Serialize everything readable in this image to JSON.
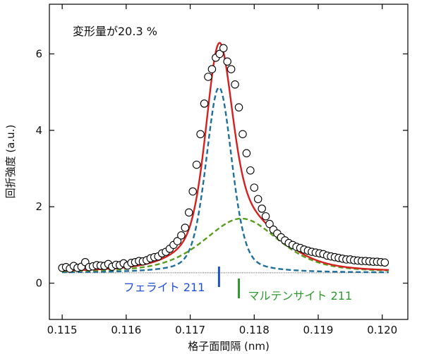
{
  "chart_data": {
    "type": "line",
    "annotation": "変形量が20.3 %",
    "xlabel": "格子面間隔 (nm)",
    "ylabel": "回折強度 (a.u.)",
    "xlim": [
      0.1148,
      0.1204
    ],
    "ylim": [
      -0.95,
      7.3
    ],
    "xticks": [
      "0.115",
      "0.116",
      "0.117",
      "0.118",
      "0.119",
      "0.120"
    ],
    "yticks": [
      "0",
      "2",
      "4",
      "6"
    ],
    "peak_markers": [
      {
        "label": "フェライト 211",
        "x": 0.11745,
        "color": "#1f4fd8"
      },
      {
        "label": "マルテンサイト 211",
        "x": 0.11776,
        "color": "#2e9a2e"
      }
    ],
    "baseline": 0.27,
    "series": [
      {
        "style": "open-circles",
        "color": "#000000",
        "x": [
          0.115,
          0.11506,
          0.11512,
          0.11518,
          0.11524,
          0.1153,
          0.11536,
          0.11542,
          0.11548,
          0.11554,
          0.1156,
          0.11566,
          0.11572,
          0.11578,
          0.11584,
          0.1159,
          0.11596,
          0.11602,
          0.11608,
          0.11614,
          0.1162,
          0.11626,
          0.11632,
          0.11638,
          0.11644,
          0.1165,
          0.11656,
          0.11662,
          0.11668,
          0.11674,
          0.1168,
          0.11686,
          0.11692,
          0.11698,
          0.11704,
          0.1171,
          0.11716,
          0.11722,
          0.11728,
          0.11734,
          0.1174,
          0.11746,
          0.11752,
          0.11758,
          0.11764,
          0.1177,
          0.11776,
          0.11782,
          0.11788,
          0.11794,
          0.118,
          0.11806,
          0.11812,
          0.11818,
          0.11824,
          0.1183,
          0.11836,
          0.11842,
          0.11848,
          0.11854,
          0.1186,
          0.11866,
          0.11872,
          0.11878,
          0.11884,
          0.1189,
          0.11896,
          0.11902,
          0.11908,
          0.11914,
          0.1192,
          0.11926,
          0.11932,
          0.11938,
          0.11944,
          0.1195,
          0.11956,
          0.11962,
          0.11968,
          0.11974,
          0.1198,
          0.11986,
          0.11992,
          0.11998,
          0.12004
        ],
        "y": [
          0.4,
          0.42,
          0.38,
          0.45,
          0.4,
          0.43,
          0.55,
          0.42,
          0.44,
          0.47,
          0.46,
          0.45,
          0.5,
          0.43,
          0.48,
          0.47,
          0.52,
          0.46,
          0.53,
          0.55,
          0.58,
          0.57,
          0.6,
          0.65,
          0.68,
          0.7,
          0.78,
          0.82,
          0.9,
          1.0,
          1.1,
          1.25,
          1.45,
          1.85,
          2.4,
          3.1,
          3.9,
          4.7,
          5.4,
          5.6,
          5.9,
          6.0,
          6.15,
          5.8,
          5.6,
          5.2,
          4.6,
          3.9,
          3.4,
          2.95,
          2.5,
          2.2,
          1.95,
          1.75,
          1.55,
          1.4,
          1.3,
          1.2,
          1.12,
          1.05,
          1.0,
          0.95,
          0.92,
          0.88,
          0.85,
          0.82,
          0.8,
          0.78,
          0.76,
          0.72,
          0.7,
          0.68,
          0.66,
          0.64,
          0.62,
          0.62,
          0.6,
          0.59,
          0.58,
          0.58,
          0.57,
          0.56,
          0.56,
          0.55,
          0.54
        ]
      },
      {
        "name": "",
        "style": "solid",
        "color": "#d62020",
        "profile": {
          "kind": "sum-of-components",
          "baseline": 0.27
        }
      },
      {
        "name": "",
        "style": "dashed",
        "color": "#1f6f9e",
        "profile": {
          "kind": "pseudo-voigt",
          "center": 0.11745,
          "amplitude": 4.85,
          "fwhm": 0.00048,
          "eta": 0.35,
          "baseline": 0.27
        }
      },
      {
        "name": "",
        "style": "dashed",
        "color": "#5a9e1e",
        "profile": {
          "kind": "pseudo-voigt",
          "center": 0.1178,
          "amplitude": 1.42,
          "fwhm": 0.0014,
          "eta": 0.5,
          "baseline": 0.27
        }
      }
    ]
  }
}
